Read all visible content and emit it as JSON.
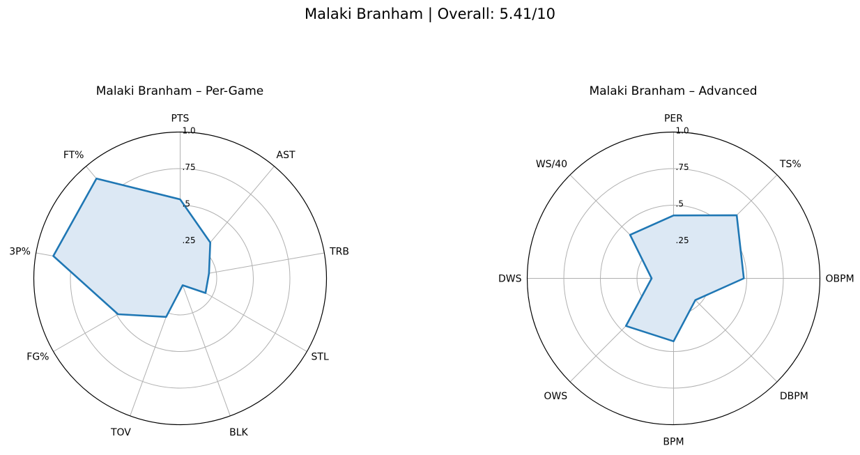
{
  "figure_title": "Malaki Branham | Overall: 5.41/10",
  "colors": {
    "line": "#1f77b4",
    "fill": "#dce8f4",
    "grid": "#b0b0b0",
    "frame": "#000000"
  },
  "chart_data": [
    {
      "type": "radar",
      "title": "Malaki Branham – Per-Game",
      "categories": [
        "PTS",
        "AST",
        "TRB",
        "STL",
        "BLK",
        "TOV",
        "FG%",
        "3P%",
        "FT%"
      ],
      "values": [
        0.54,
        0.32,
        0.2,
        0.2,
        0.05,
        0.28,
        0.49,
        0.88,
        0.89
      ],
      "rlim": [
        0,
        1.0
      ],
      "ticks": [
        0.25,
        0.5,
        0.75,
        1.0
      ],
      "tick_labels": [
        ".25",
        ".5",
        ".75",
        "1.0"
      ],
      "grid": true
    },
    {
      "type": "radar",
      "title": "Malaki Branham – Advanced",
      "categories": [
        "PER",
        "TS%",
        "OBPM",
        "DBPM",
        "BPM",
        "OWS",
        "DWS",
        "WS/40"
      ],
      "values": [
        0.43,
        0.61,
        0.48,
        0.21,
        0.43,
        0.46,
        0.15,
        0.42
      ],
      "rlim": [
        0,
        1.0
      ],
      "ticks": [
        0.25,
        0.5,
        0.75,
        1.0
      ],
      "tick_labels": [
        ".25",
        ".5",
        ".75",
        "1.0"
      ],
      "grid": true
    }
  ]
}
